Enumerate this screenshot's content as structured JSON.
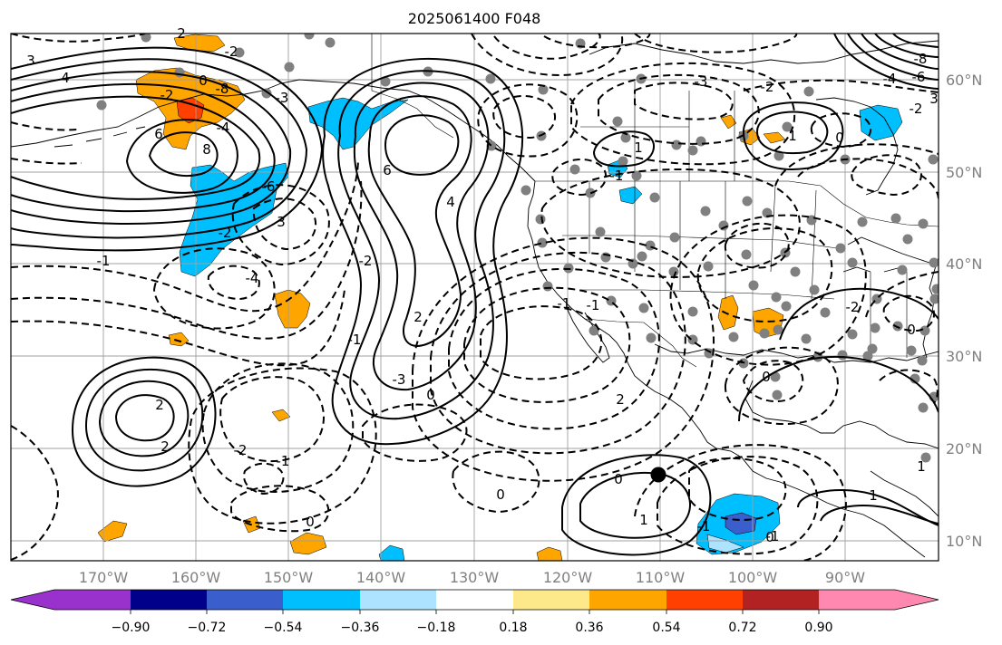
{
  "title": "2025061400 F048",
  "lon_labels": [
    "170°W",
    "160°W",
    "150°W",
    "140°W",
    "130°W",
    "120°W",
    "110°W",
    "100°W",
    "90°W"
  ],
  "lat_labels": [
    "60°N",
    "50°N",
    "40°N",
    "30°N",
    "20°N",
    "10°N"
  ],
  "colorbar": {
    "tick_labels": [
      "−0.90",
      "−0.72",
      "−0.54",
      "−0.36",
      "−0.18",
      "0.18",
      "0.36",
      "0.54",
      "0.72",
      "0.90"
    ],
    "colors": [
      "#9932cc",
      "#00008b",
      "#3a5fcd",
      "#00bfff",
      "#aee3ff",
      "#ffffff",
      "#fde98a",
      "#ffa500",
      "#ff4000",
      "#b22222",
      "#ff88b0"
    ]
  },
  "contour_labels": {
    "l1": "3",
    "l2": "4",
    "l3": "2",
    "l4": "0",
    "l5": "-8",
    "l6": "6",
    "l7": "-2",
    "l8": "-2",
    "l9": "-4",
    "l10": "-4",
    "l11": "-6",
    "l12": "-3",
    "l13": "8",
    "l14": "6",
    "l15": "4",
    "l16": "-2",
    "l17": "2",
    "l18": "-1",
    "l19": "0",
    "l20": "-3",
    "l21": "2",
    "l22": "-1",
    "l23": "3",
    "l24": "-2",
    "l25": "-1",
    "l26": "0",
    "l27": "-2",
    "l28": "2",
    "l29": "2",
    "l30": "-1",
    "l31": "-1",
    "l32": "0",
    "l33": "1",
    "l34": "-1",
    "l35": "0",
    "l36": "1",
    "l37": "-1",
    "l38": "-3",
    "l39": "-2",
    "l40": "1",
    "l41": "0",
    "l42": "-4",
    "l43": "-2",
    "l44": "-6",
    "l45": "-8",
    "l46": "0",
    "l47": "-2",
    "l48": "1",
    "l49": "0",
    "l50": "-1",
    "l51": "0",
    "l52": "3",
    "l53": "1"
  }
}
